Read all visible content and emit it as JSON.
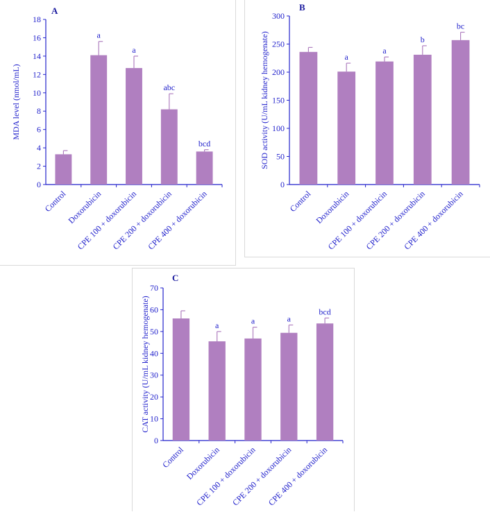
{
  "colors": {
    "bar": "#b07fc0",
    "errorbar": "#b07fc0",
    "axis": "#2222cc",
    "text": "#2222cc"
  },
  "chart_data": [
    {
      "panel": "A",
      "type": "bar",
      "ylabel": "MDA level (nmol/mL)",
      "ylim": [
        0,
        18
      ],
      "yticks": [
        0,
        2,
        4,
        6,
        8,
        10,
        12,
        14,
        16,
        18
      ],
      "categories": [
        "Control",
        "Doxorubicin",
        "CPE 100 + doxorubicin",
        "CPE 200 + doxorubicin",
        "CPE 400 + doxorubicin"
      ],
      "values": [
        3.3,
        14.1,
        12.7,
        8.2,
        3.6
      ],
      "errors": [
        0.4,
        1.5,
        1.3,
        1.7,
        0.2
      ],
      "significance": [
        "",
        "a",
        "a",
        "abc",
        "bcd"
      ]
    },
    {
      "panel": "B",
      "type": "bar",
      "ylabel": "SOD activity (U/mL kidney hemogenate)",
      "ylim": [
        0,
        300
      ],
      "yticks": [
        0,
        50,
        100,
        150,
        200,
        250,
        300
      ],
      "categories": [
        "Control",
        "Doxorubicin",
        "CPE 100 + doxorubicin",
        "CPE 200 + doxorubicin",
        "CPE 400 + doxorubicin"
      ],
      "values": [
        236,
        201,
        219,
        231,
        257
      ],
      "errors": [
        8,
        15,
        8,
        16,
        14
      ],
      "significance": [
        "",
        "a",
        "a",
        "b",
        "bc"
      ]
    },
    {
      "panel": "C",
      "type": "bar",
      "ylabel": "CAT activity (U/mL kidney hemogenate)",
      "ylim": [
        0,
        70
      ],
      "yticks": [
        0,
        10,
        20,
        30,
        40,
        50,
        60,
        70
      ],
      "categories": [
        "Control",
        "Doxorubicin",
        "CPE 100 + doxorubicin",
        "CPE 200 + doxorubicin",
        "CPE 400 + doxorubicin"
      ],
      "values": [
        56,
        45.5,
        46.8,
        49.4,
        53.7
      ],
      "errors": [
        3.5,
        4.5,
        5.2,
        3.6,
        2.5
      ],
      "significance": [
        "",
        "a",
        "a",
        "a",
        "bcd"
      ]
    }
  ]
}
